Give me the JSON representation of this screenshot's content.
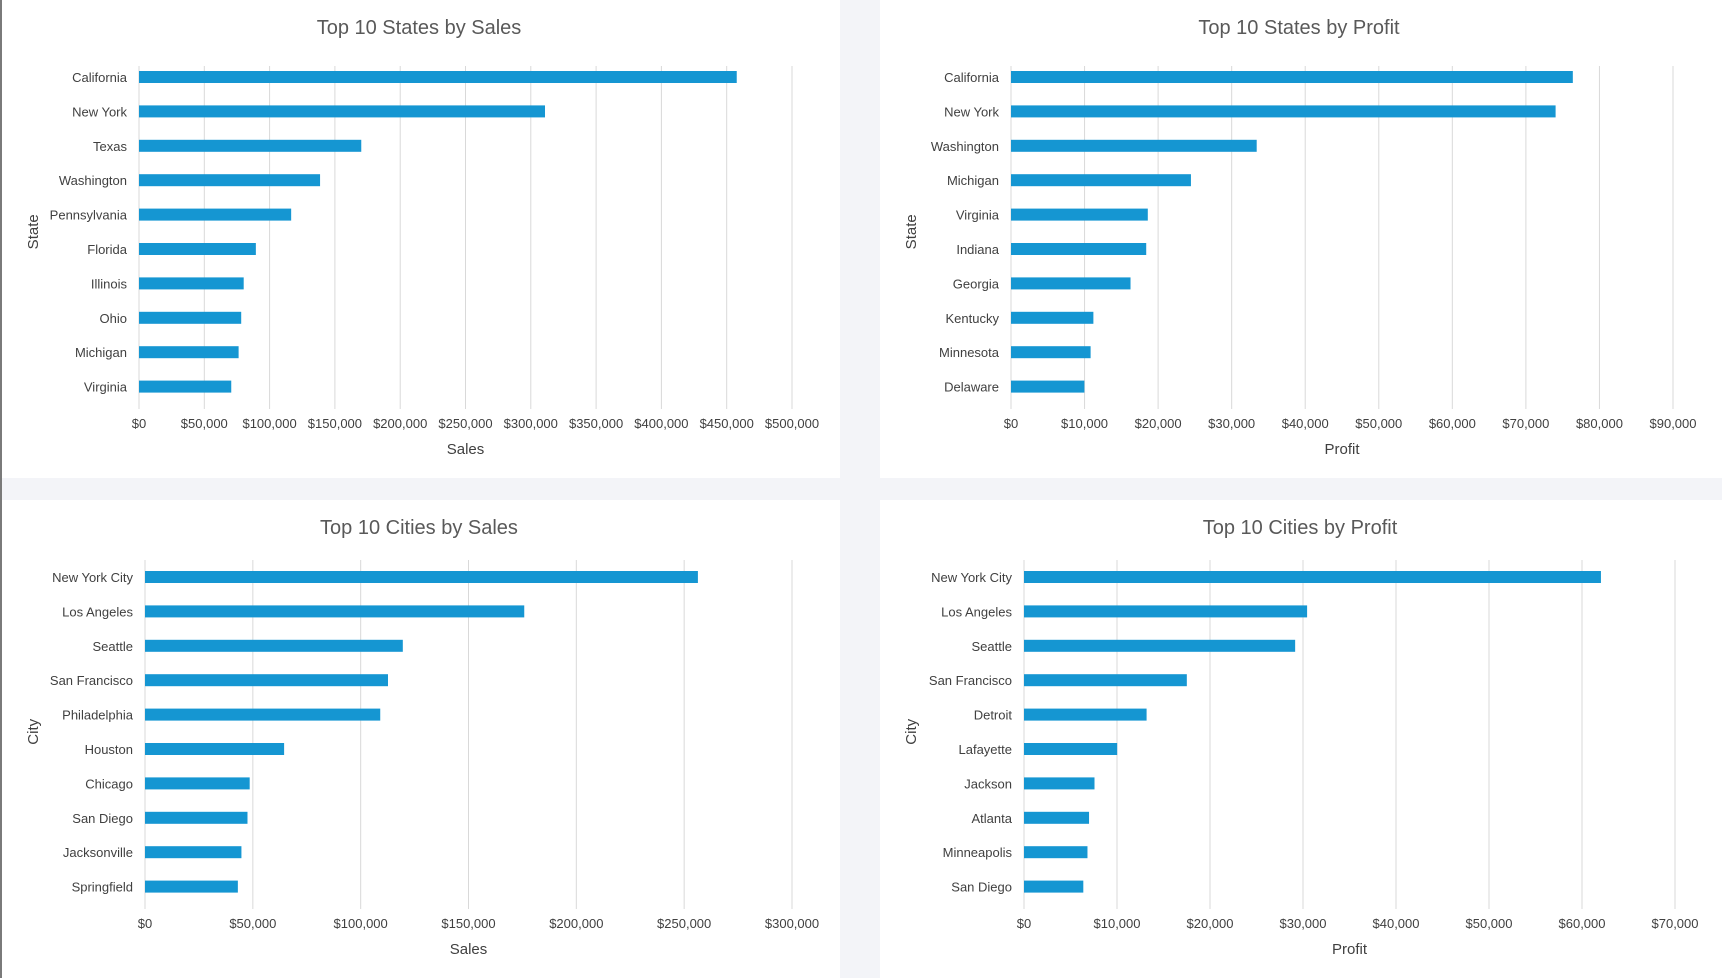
{
  "chart_data": [
    {
      "type": "bar",
      "orientation": "horizontal",
      "title": "Top 10 States by Sales",
      "xlabel": "Sales",
      "ylabel": "State",
      "categories": [
        "California",
        "New York",
        "Texas",
        "Washington",
        "Pennsylvania",
        "Florida",
        "Illinois",
        "Ohio",
        "Michigan",
        "Virginia"
      ],
      "values": [
        457688,
        310876,
        170188,
        138641,
        116512,
        89474,
        80166,
        78258,
        76270,
        70637
      ],
      "xlim": [
        0,
        500000
      ],
      "xticks": [
        "$0",
        "$50,000",
        "$100,000",
        "$150,000",
        "$200,000",
        "$250,000",
        "$300,000",
        "$350,000",
        "$400,000",
        "$450,000",
        "$500,000"
      ],
      "grid": true,
      "bar_color": "#1596d2"
    },
    {
      "type": "bar",
      "orientation": "horizontal",
      "title": "Top 10 States by Profit",
      "xlabel": "Profit",
      "ylabel": "State",
      "categories": [
        "California",
        "New York",
        "Washington",
        "Michigan",
        "Virginia",
        "Indiana",
        "Georgia",
        "Kentucky",
        "Minnesota",
        "Delaware"
      ],
      "values": [
        76381,
        74039,
        33403,
        24463,
        18598,
        18383,
        16250,
        11200,
        10823,
        9977
      ],
      "xlim": [
        0,
        90000
      ],
      "xticks": [
        "$0",
        "$10,000",
        "$20,000",
        "$30,000",
        "$40,000",
        "$50,000",
        "$60,000",
        "$70,000",
        "$80,000",
        "$90,000"
      ],
      "grid": true,
      "bar_color": "#1596d2"
    },
    {
      "type": "bar",
      "orientation": "horizontal",
      "title": "Top 10 Cities by Sales",
      "xlabel": "Sales",
      "ylabel": "City",
      "categories": [
        "New York City",
        "Los Angeles",
        "Seattle",
        "San Francisco",
        "Philadelphia",
        "Houston",
        "Chicago",
        "San Diego",
        "Jacksonville",
        "Springfield"
      ],
      "values": [
        256368,
        175851,
        119541,
        112669,
        109077,
        64505,
        48540,
        47521,
        44713,
        43054
      ],
      "xlim": [
        0,
        300000
      ],
      "xticks": [
        "$0",
        "$50,000",
        "$100,000",
        "$150,000",
        "$200,000",
        "$250,000",
        "$300,000"
      ],
      "grid": true,
      "bar_color": "#1596d2"
    },
    {
      "type": "bar",
      "orientation": "horizontal",
      "title": "Top 10 Cities by Profit",
      "xlabel": "Profit",
      "ylabel": "City",
      "categories": [
        "New York City",
        "Los Angeles",
        "Seattle",
        "San Francisco",
        "Detroit",
        "Lafayette",
        "Jackson",
        "Atlanta",
        "Minneapolis",
        "San Diego"
      ],
      "values": [
        62037,
        30441,
        29156,
        17508,
        13182,
        10018,
        7581,
        6994,
        6825,
        6377
      ],
      "xlim": [
        0,
        70000
      ],
      "xticks": [
        "$0",
        "$10,000",
        "$20,000",
        "$30,000",
        "$40,000",
        "$50,000",
        "$60,000",
        "$70,000"
      ],
      "grid": true,
      "bar_color": "#1596d2"
    }
  ]
}
